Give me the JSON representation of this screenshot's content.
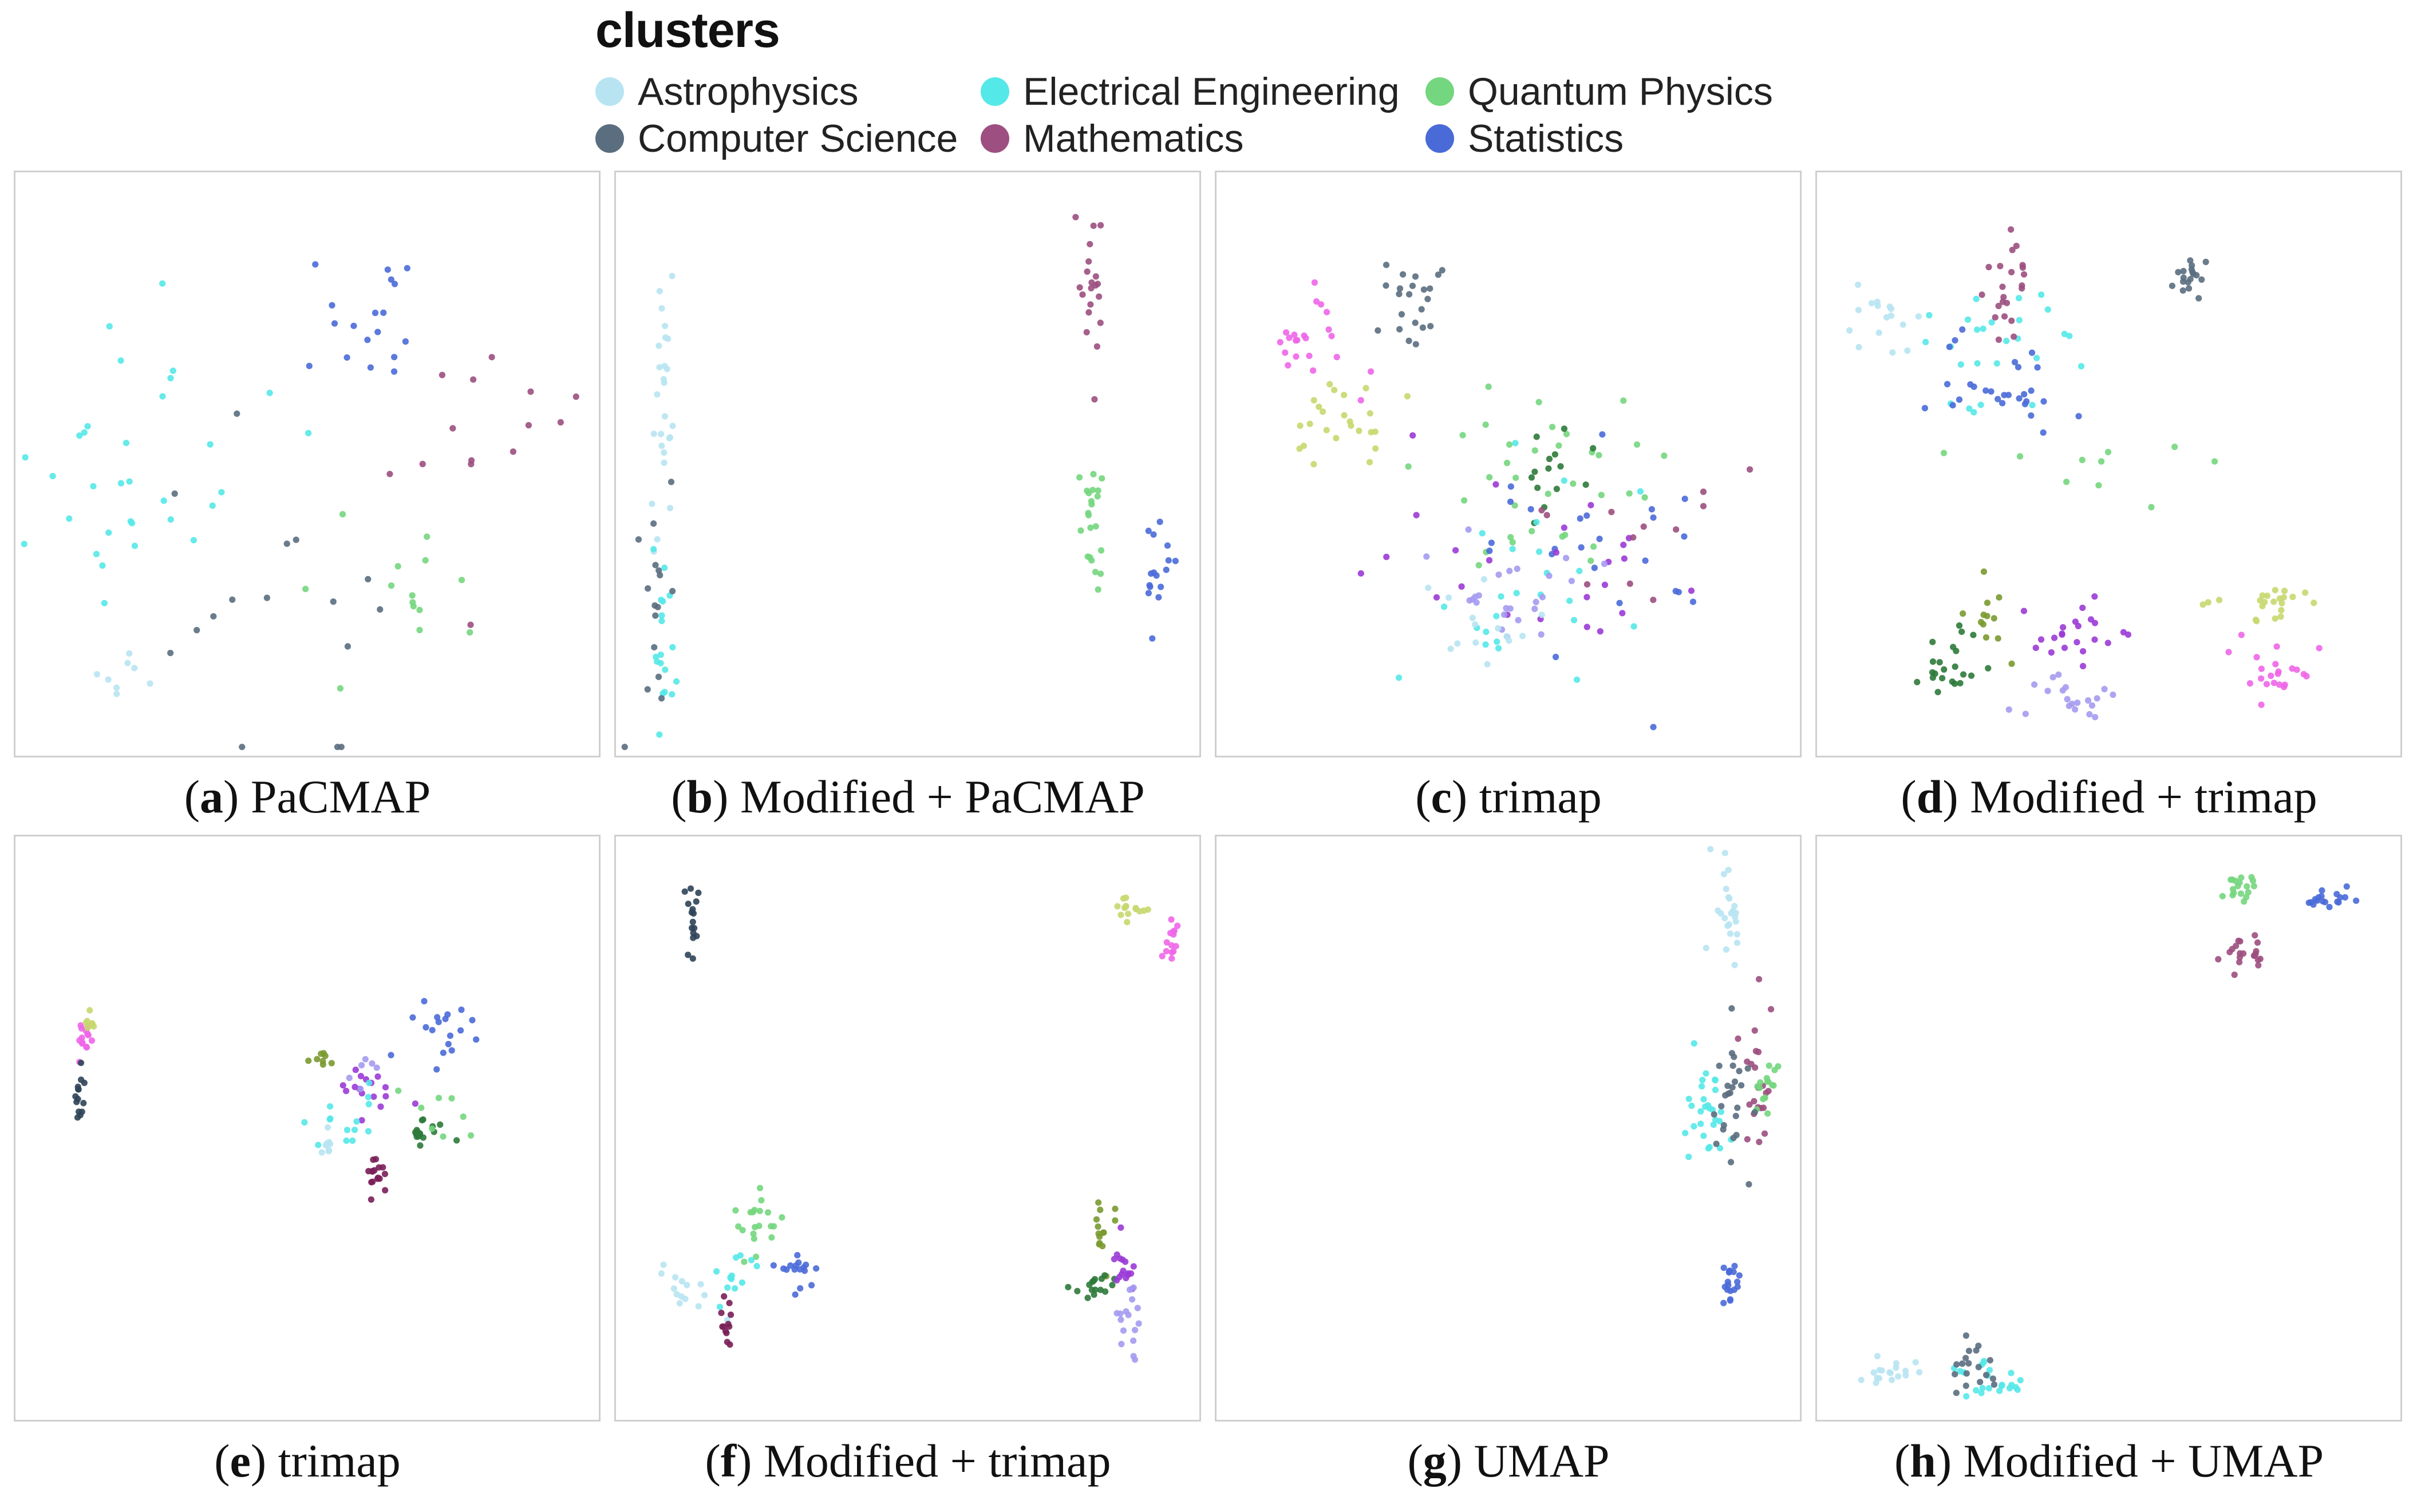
{
  "legend": {
    "title": "clusters",
    "items": [
      {
        "name": "Astrophysics",
        "color": "#b8e4f2"
      },
      {
        "name": "Computer Science",
        "color": "#5a6e80"
      },
      {
        "name": "Electrical Engineering",
        "color": "#55e8e8"
      },
      {
        "name": "Mathematics",
        "color": "#9c4f80"
      },
      {
        "name": "Quantum Physics",
        "color": "#74d67e"
      },
      {
        "name": "Statistics",
        "color": "#4a6ad8"
      }
    ]
  },
  "extra_colors": {
    "violet": "#9b3bd6",
    "lavender": "#a49bf0",
    "magenta": "#ee66e8",
    "olive": "#c7d86e",
    "darkgreen": "#2e7a3a",
    "olivegreen": "#7a9a30",
    "darkslate": "#2f4458",
    "darkplum": "#7a1f58"
  },
  "chart_data": [
    {
      "type": "scatter",
      "id": "a",
      "letter": "a",
      "caption": "PaCMAP",
      "clusters": [
        {
          "color": "Electrical Engineering",
          "cx": 0.22,
          "cy": 0.48,
          "sx": 0.18,
          "sy": 0.22,
          "n": 32
        },
        {
          "color": "Statistics",
          "cx": 0.6,
          "cy": 0.25,
          "sx": 0.1,
          "sy": 0.09,
          "n": 18
        },
        {
          "color": "Mathematics",
          "cx": 0.82,
          "cy": 0.45,
          "sx": 0.12,
          "sy": 0.18,
          "n": 14
        },
        {
          "color": "Quantum Physics",
          "cx": 0.65,
          "cy": 0.75,
          "sx": 0.15,
          "sy": 0.15,
          "n": 14
        },
        {
          "color": "Computer Science",
          "cx": 0.45,
          "cy": 0.72,
          "sx": 0.22,
          "sy": 0.22,
          "n": 16
        },
        {
          "color": "Astrophysics",
          "cx": 0.18,
          "cy": 0.88,
          "sx": 0.08,
          "sy": 0.04,
          "n": 8
        }
      ]
    },
    {
      "type": "scatter",
      "id": "b",
      "letter": "b",
      "caption": "Modified + PaCMAP",
      "clusters": [
        {
          "color": "Astrophysics",
          "cx": 0.08,
          "cy": 0.35,
          "sx": 0.02,
          "sy": 0.22,
          "n": 26
        },
        {
          "color": "Electrical Engineering",
          "cx": 0.08,
          "cy": 0.8,
          "sx": 0.02,
          "sy": 0.12,
          "n": 18
        },
        {
          "color": "Computer Science",
          "cx": 0.06,
          "cy": 0.7,
          "sx": 0.03,
          "sy": 0.18,
          "n": 16
        },
        {
          "color": "Mathematics",
          "cx": 0.81,
          "cy": 0.18,
          "sx": 0.015,
          "sy": 0.14,
          "n": 20
        },
        {
          "color": "Quantum Physics",
          "cx": 0.82,
          "cy": 0.6,
          "sx": 0.02,
          "sy": 0.1,
          "n": 22
        },
        {
          "color": "Statistics",
          "cx": 0.93,
          "cy": 0.68,
          "sx": 0.02,
          "sy": 0.1,
          "n": 16
        }
      ]
    },
    {
      "type": "scatter",
      "id": "c",
      "letter": "c",
      "caption": "trimap",
      "clusters": [
        {
          "color": "magenta",
          "cx": 0.16,
          "cy": 0.3,
          "sx": 0.07,
          "sy": 0.08,
          "n": 22
        },
        {
          "color": "olive",
          "cx": 0.22,
          "cy": 0.43,
          "sx": 0.08,
          "sy": 0.06,
          "n": 24
        },
        {
          "color": "Computer Science",
          "cx": 0.33,
          "cy": 0.22,
          "sx": 0.05,
          "sy": 0.07,
          "n": 22
        },
        {
          "color": "Quantum Physics",
          "cx": 0.55,
          "cy": 0.5,
          "sx": 0.15,
          "sy": 0.16,
          "n": 34
        },
        {
          "color": "darkgreen",
          "cx": 0.58,
          "cy": 0.5,
          "sx": 0.08,
          "sy": 0.08,
          "n": 14
        },
        {
          "color": "Statistics",
          "cx": 0.65,
          "cy": 0.65,
          "sx": 0.22,
          "sy": 0.2,
          "n": 24
        },
        {
          "color": "Electrical Engineering",
          "cx": 0.55,
          "cy": 0.7,
          "sx": 0.2,
          "sy": 0.18,
          "n": 24
        },
        {
          "color": "violet",
          "cx": 0.55,
          "cy": 0.68,
          "sx": 0.22,
          "sy": 0.15,
          "n": 24
        },
        {
          "color": "lavender",
          "cx": 0.5,
          "cy": 0.72,
          "sx": 0.12,
          "sy": 0.08,
          "n": 24
        },
        {
          "color": "Mathematics",
          "cx": 0.75,
          "cy": 0.6,
          "sx": 0.15,
          "sy": 0.12,
          "n": 12
        },
        {
          "color": "Astrophysics",
          "cx": 0.45,
          "cy": 0.78,
          "sx": 0.1,
          "sy": 0.06,
          "n": 14
        }
      ]
    },
    {
      "type": "scatter",
      "id": "d",
      "letter": "d",
      "caption": "Modified + trimap",
      "clusters": [
        {
          "color": "Astrophysics",
          "cx": 0.12,
          "cy": 0.25,
          "sx": 0.06,
          "sy": 0.05,
          "n": 16
        },
        {
          "color": "Electrical Engineering",
          "cx": 0.3,
          "cy": 0.28,
          "sx": 0.12,
          "sy": 0.1,
          "n": 26
        },
        {
          "color": "Mathematics",
          "cx": 0.33,
          "cy": 0.2,
          "sx": 0.04,
          "sy": 0.08,
          "n": 22
        },
        {
          "color": "Statistics",
          "cx": 0.3,
          "cy": 0.38,
          "sx": 0.12,
          "sy": 0.07,
          "n": 28
        },
        {
          "color": "Computer Science",
          "cx": 0.64,
          "cy": 0.18,
          "sx": 0.03,
          "sy": 0.025,
          "n": 18
        },
        {
          "color": "Quantum Physics",
          "cx": 0.45,
          "cy": 0.52,
          "sx": 0.22,
          "sy": 0.06,
          "n": 10
        },
        {
          "color": "darkgreen",
          "cx": 0.22,
          "cy": 0.84,
          "sx": 0.05,
          "sy": 0.05,
          "n": 22
        },
        {
          "color": "olivegreen",
          "cx": 0.3,
          "cy": 0.77,
          "sx": 0.06,
          "sy": 0.05,
          "n": 12
        },
        {
          "color": "violet",
          "cx": 0.45,
          "cy": 0.8,
          "sx": 0.08,
          "sy": 0.06,
          "n": 22
        },
        {
          "color": "lavender",
          "cx": 0.45,
          "cy": 0.9,
          "sx": 0.07,
          "sy": 0.04,
          "n": 20
        },
        {
          "color": "olive",
          "cx": 0.78,
          "cy": 0.74,
          "sx": 0.07,
          "sy": 0.04,
          "n": 22
        },
        {
          "color": "magenta",
          "cx": 0.8,
          "cy": 0.87,
          "sx": 0.06,
          "sy": 0.04,
          "n": 22
        }
      ]
    },
    {
      "type": "scatter",
      "id": "e",
      "letter": "e",
      "caption": "trimap",
      "clusters": [
        {
          "color": "magenta",
          "cx": 0.12,
          "cy": 0.35,
          "sx": 0.012,
          "sy": 0.02,
          "n": 14
        },
        {
          "color": "olive",
          "cx": 0.13,
          "cy": 0.32,
          "sx": 0.01,
          "sy": 0.015,
          "n": 8
        },
        {
          "color": "darkslate",
          "cx": 0.11,
          "cy": 0.44,
          "sx": 0.008,
          "sy": 0.03,
          "n": 14
        },
        {
          "color": "violet",
          "cx": 0.6,
          "cy": 0.42,
          "sx": 0.06,
          "sy": 0.04,
          "n": 16
        },
        {
          "color": "Electrical Engineering",
          "cx": 0.57,
          "cy": 0.48,
          "sx": 0.05,
          "sy": 0.05,
          "n": 14
        },
        {
          "color": "Statistics",
          "cx": 0.74,
          "cy": 0.33,
          "sx": 0.06,
          "sy": 0.06,
          "n": 18
        },
        {
          "color": "darkgreen",
          "cx": 0.7,
          "cy": 0.51,
          "sx": 0.04,
          "sy": 0.02,
          "n": 18
        },
        {
          "color": "darkplum",
          "cx": 0.62,
          "cy": 0.58,
          "sx": 0.015,
          "sy": 0.04,
          "n": 16
        },
        {
          "color": "Astrophysics",
          "cx": 0.53,
          "cy": 0.52,
          "sx": 0.012,
          "sy": 0.02,
          "n": 8
        },
        {
          "color": "olivegreen",
          "cx": 0.52,
          "cy": 0.38,
          "sx": 0.04,
          "sy": 0.01,
          "n": 8
        },
        {
          "color": "Quantum Physics",
          "cx": 0.72,
          "cy": 0.48,
          "sx": 0.07,
          "sy": 0.06,
          "n": 8
        },
        {
          "color": "lavender",
          "cx": 0.6,
          "cy": 0.4,
          "sx": 0.04,
          "sy": 0.03,
          "n": 6
        }
      ]
    },
    {
      "type": "scatter",
      "id": "f",
      "letter": "f",
      "caption": "Modified + trimap",
      "clusters": [
        {
          "color": "darkslate",
          "cx": 0.13,
          "cy": 0.15,
          "sx": 0.015,
          "sy": 0.06,
          "n": 16
        },
        {
          "color": "olive",
          "cx": 0.88,
          "cy": 0.12,
          "sx": 0.02,
          "sy": 0.025,
          "n": 14
        },
        {
          "color": "magenta",
          "cx": 0.95,
          "cy": 0.18,
          "sx": 0.012,
          "sy": 0.03,
          "n": 14
        },
        {
          "color": "Quantum Physics",
          "cx": 0.24,
          "cy": 0.66,
          "sx": 0.03,
          "sy": 0.04,
          "n": 20
        },
        {
          "color": "Statistics",
          "cx": 0.3,
          "cy": 0.74,
          "sx": 0.04,
          "sy": 0.03,
          "n": 16
        },
        {
          "color": "Astrophysics",
          "cx": 0.12,
          "cy": 0.78,
          "sx": 0.04,
          "sy": 0.04,
          "n": 14
        },
        {
          "color": "Electrical Engineering",
          "cx": 0.2,
          "cy": 0.76,
          "sx": 0.03,
          "sy": 0.04,
          "n": 12
        },
        {
          "color": "darkplum",
          "cx": 0.19,
          "cy": 0.82,
          "sx": 0.008,
          "sy": 0.05,
          "n": 12
        },
        {
          "color": "olivegreen",
          "cx": 0.83,
          "cy": 0.68,
          "sx": 0.015,
          "sy": 0.06,
          "n": 14
        },
        {
          "color": "darkgreen",
          "cx": 0.82,
          "cy": 0.77,
          "sx": 0.03,
          "sy": 0.03,
          "n": 16
        },
        {
          "color": "violet",
          "cx": 0.87,
          "cy": 0.74,
          "sx": 0.015,
          "sy": 0.05,
          "n": 16
        },
        {
          "color": "lavender",
          "cx": 0.88,
          "cy": 0.83,
          "sx": 0.015,
          "sy": 0.05,
          "n": 16
        }
      ]
    },
    {
      "type": "scatter",
      "id": "g",
      "letter": "g",
      "caption": "UMAP",
      "clusters": [
        {
          "color": "Astrophysics",
          "cx": 0.88,
          "cy": 0.12,
          "sx": 0.02,
          "sy": 0.09,
          "n": 24
        },
        {
          "color": "Electrical Engineering",
          "cx": 0.84,
          "cy": 0.48,
          "sx": 0.035,
          "sy": 0.08,
          "n": 28
        },
        {
          "color": "Mathematics",
          "cx": 0.92,
          "cy": 0.4,
          "sx": 0.025,
          "sy": 0.12,
          "n": 22
        },
        {
          "color": "Quantum Physics",
          "cx": 0.94,
          "cy": 0.42,
          "sx": 0.02,
          "sy": 0.05,
          "n": 16
        },
        {
          "color": "Computer Science",
          "cx": 0.88,
          "cy": 0.45,
          "sx": 0.03,
          "sy": 0.14,
          "n": 26
        },
        {
          "color": "Statistics",
          "cx": 0.88,
          "cy": 0.77,
          "sx": 0.015,
          "sy": 0.04,
          "n": 18
        }
      ]
    },
    {
      "type": "scatter",
      "id": "h",
      "letter": "h",
      "caption": "Modified + UMAP",
      "clusters": [
        {
          "color": "Quantum Physics",
          "cx": 0.72,
          "cy": 0.08,
          "sx": 0.025,
          "sy": 0.02,
          "n": 18
        },
        {
          "color": "Statistics",
          "cx": 0.88,
          "cy": 0.11,
          "sx": 0.04,
          "sy": 0.015,
          "n": 18
        },
        {
          "color": "Mathematics",
          "cx": 0.73,
          "cy": 0.2,
          "sx": 0.035,
          "sy": 0.025,
          "n": 20
        },
        {
          "color": "Astrophysics",
          "cx": 0.12,
          "cy": 0.92,
          "sx": 0.05,
          "sy": 0.02,
          "n": 18
        },
        {
          "color": "Electrical Engineering",
          "cx": 0.3,
          "cy": 0.93,
          "sx": 0.06,
          "sy": 0.025,
          "n": 22
        },
        {
          "color": "Computer Science",
          "cx": 0.26,
          "cy": 0.91,
          "sx": 0.03,
          "sy": 0.04,
          "n": 18
        }
      ]
    }
  ]
}
